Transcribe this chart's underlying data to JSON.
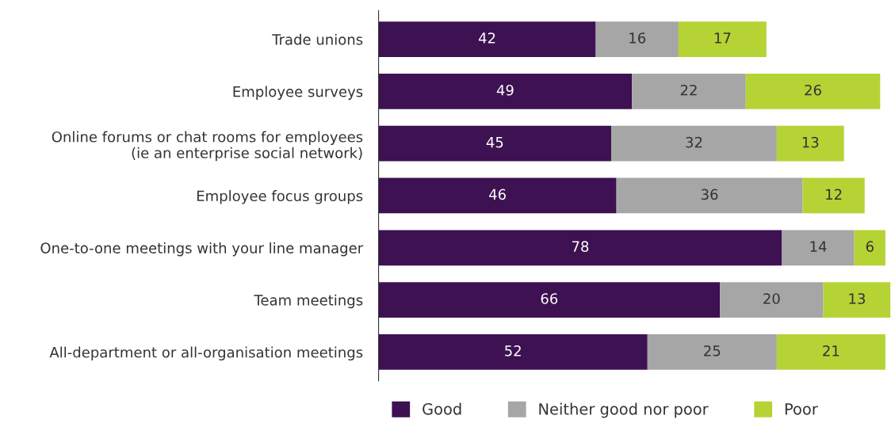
{
  "chart_data": {
    "type": "bar",
    "orientation": "horizontal",
    "stacked": true,
    "data_labels": true,
    "legend": "bottom",
    "grid": false,
    "categories": [
      "Trade unions",
      "Employee surveys",
      "Online forums or chat rooms for employees\n(ie an enterprise social network)",
      "Employee focus groups",
      "One-to-one meetings with your line manager",
      "Team meetings",
      "All-department or all-organisation meetings"
    ],
    "series": [
      {
        "name": "Good",
        "color": "#3d1152",
        "values": [
          42,
          49,
          45,
          46,
          78,
          66,
          52
        ]
      },
      {
        "name": "Neither good nor poor",
        "color": "#a6a6a6",
        "values": [
          16,
          22,
          32,
          36,
          14,
          20,
          25
        ]
      },
      {
        "name": "Poor",
        "color": "#b5d334",
        "values": [
          17,
          26,
          13,
          12,
          6,
          13,
          21
        ]
      }
    ]
  }
}
